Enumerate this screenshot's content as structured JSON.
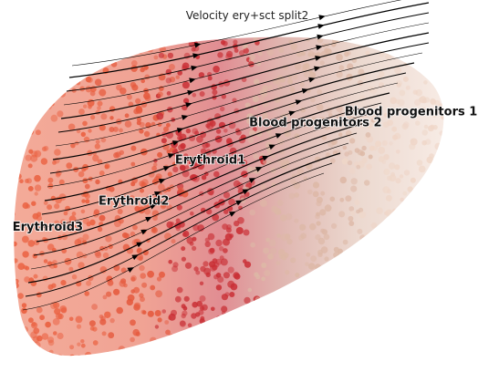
{
  "chart_data": {
    "type": "scatter",
    "subtype": "rna-velocity-streamplot",
    "title": "Velocity ery+sct split2",
    "xlabel": "",
    "ylabel": "",
    "grid": false,
    "legend": "on data",
    "colors": {
      "Erythroid3": "#ea5f3f",
      "Erythroid2": "#e55a3e",
      "Erythroid1": "#c92f35",
      "Blood progenitors 2": "#ddb8a6",
      "Blood progenitors 1": "#efd6c8",
      "stream": "#000000"
    },
    "clusters": [
      {
        "label": "Erythroid3",
        "x": 0.1,
        "y": 0.62
      },
      {
        "label": "Erythroid2",
        "x": 0.28,
        "y": 0.55
      },
      {
        "label": "Erythroid1",
        "x": 0.44,
        "y": 0.44
      },
      {
        "label": "Blood progenitors 2",
        "x": 0.66,
        "y": 0.34
      },
      {
        "label": "Blood progenitors 1",
        "x": 0.86,
        "y": 0.31
      }
    ]
  }
}
